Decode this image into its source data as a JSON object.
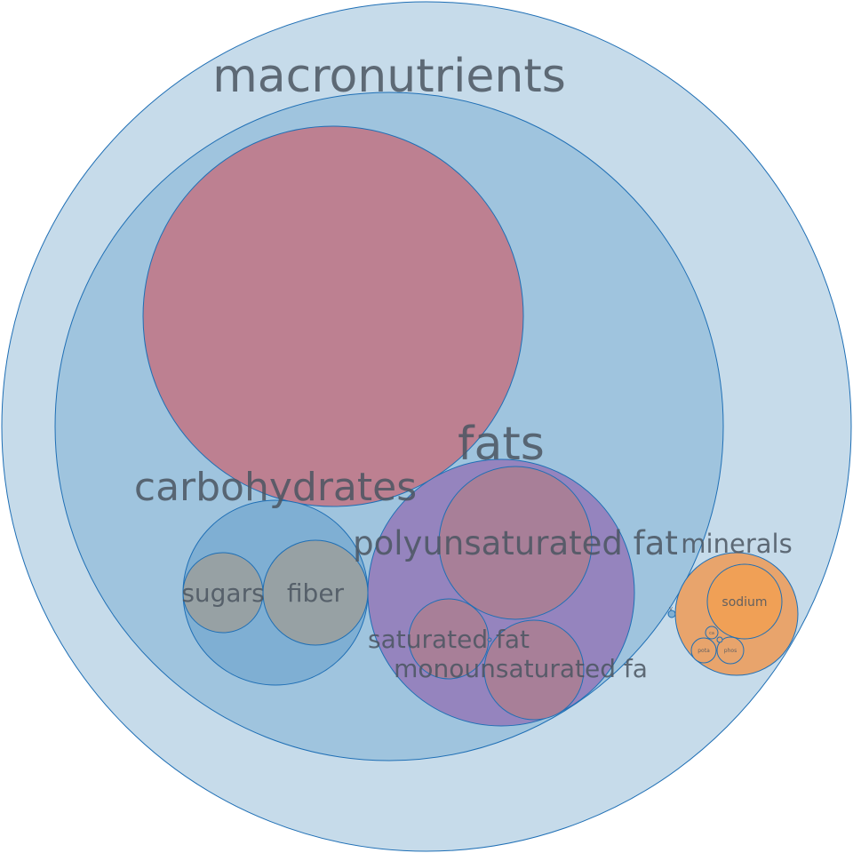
{
  "chart_data": {
    "type": "bubble-pack",
    "colors": {
      "stroke": "#1f6fb5",
      "root": "#c6dbea",
      "macronutrients": "#9fc4de",
      "large_unlabeled": "#bd8091",
      "carbohydrates": "#7fafd3",
      "carb_children": "#97a1a4",
      "fats": "#9584be",
      "fat_children": "#a87f98",
      "minerals": "#e8a46c",
      "sodium": "#f0a056",
      "text": "#4a5560"
    },
    "labels": {
      "macronutrients": "macronutrients",
      "carbohydrates": "carbohydrates",
      "sugars": "sugars",
      "fiber": "fiber",
      "fats": "fats",
      "polyunsaturated_fat": "polyunsaturated fat",
      "saturated_fat": "saturated fat",
      "monounsaturated_fat": "monounsaturated fa",
      "minerals": "minerals",
      "sodium": "sodium",
      "ca": "ca",
      "pota": "pota",
      "phos": "phos",
      "v": "v"
    }
  }
}
